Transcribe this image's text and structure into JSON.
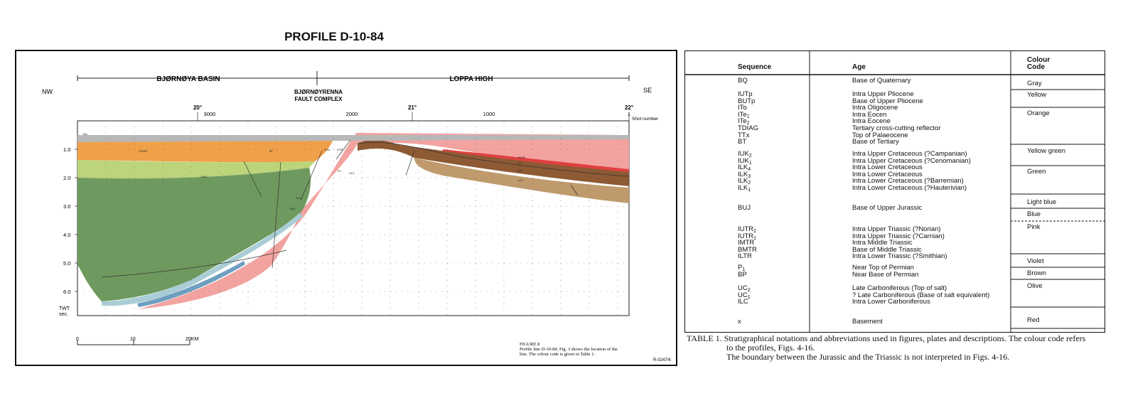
{
  "profile": {
    "title": "PROFILE D-10-84",
    "basin_left": "BJØRNØYA BASIN",
    "basin_right": "LOPPA HIGH",
    "fault_complex_line1": "BJØRNØYRENNA",
    "fault_complex_line2": "FAULT COMPLEX",
    "dir_left": "NW",
    "dir_right": "SE",
    "longitudes": [
      "20°",
      "21°",
      "22°"
    ],
    "shot_numbers": [
      "3000",
      "2000",
      "1000",
      "1"
    ],
    "shot_label": "Shot number",
    "depth_ticks": [
      "1.0",
      "2.0",
      "3.0",
      "4.0",
      "5.0",
      "6.0"
    ],
    "twt_label_1": "TWT",
    "twt_label_2": "sec.",
    "scale_labels": [
      "0",
      "10",
      "20KM"
    ],
    "figure_caption": {
      "line1": "FIGURE 8",
      "line2": "Profile line D-10-84. Fig. 3 shows the location of the",
      "line3": "line. The colour code is given in Table 1."
    },
    "ref_code": "R-0247/6",
    "horizon_labels": [
      "BQ",
      "TDIAG",
      "BT",
      "IUK1",
      "ILK1",
      "BUJ",
      "ILK4",
      "ILTR",
      "P1",
      "UC1",
      "IMTR",
      "P1",
      "BP",
      "UC1"
    ],
    "colors": {
      "orange": "#f0a048",
      "yellow_green": "#bcd47a",
      "green": "#6f9a5f",
      "light_blue": "#a9cdd6",
      "blue": "#6d9ec0",
      "pink": "#f2a3a0",
      "brown": "#8d5a34",
      "olive": "#bf9a6c",
      "violet": "#c07ab8",
      "gray": "#b8b8b8",
      "red": "#e04040"
    }
  },
  "table": {
    "headers": {
      "sequence": "Sequence",
      "age": "Age",
      "colour_line1": "Colour",
      "colour_line2": "Code"
    },
    "groups": [
      {
        "seq": [
          "BQ"
        ],
        "age": [
          "Base of Quaternary"
        ],
        "colours": [
          "Gray"
        ]
      },
      {
        "seq": [
          "IUTp",
          "BUTp",
          "ITo",
          "ITe1",
          "ITe2",
          "TDIAG",
          "TTx",
          "BT"
        ],
        "age": [
          "Intra Upper Pliocene",
          "Base of Upper Pliocene",
          "Intra Oligocene",
          "Intra Eocen",
          "Intra Eocene",
          "Tertiary cross-cutting reflector",
          "Top of Palaeocene",
          "Base of Tertiary"
        ],
        "colours": [
          "Yellow",
          "Orange"
        ]
      },
      {
        "seq": [
          "IUK2",
          "IUK1",
          "ILK4",
          "ILK3",
          "ILK2",
          "ILK1"
        ],
        "age": [
          "Intra Upper Cretaceous (?Campanian)",
          "Intra Upper Cretaceous (?Cenomanian)",
          "Intra Lower Cretaceous",
          "Intra Lower Cretaceous",
          "Intra Lower Cretaceous (?Barremian)",
          "Intra Lower Cretaceous (?Hauterivian)"
        ],
        "colours": [
          "Yellow green",
          "Green"
        ]
      },
      {
        "seq": [
          "BUJ"
        ],
        "age": [
          "Base of Upper Jurassic"
        ],
        "colours": [
          "Light blue",
          "Blue"
        ]
      },
      {
        "seq": [
          "IUTR2",
          "IUTR1",
          "IMTR",
          "BMTR",
          "ILTR"
        ],
        "age": [
          "Intra Upper Triassic (?Norian)",
          "Intra Upper Triassic (?Carnian)",
          "Intra Middle Triassic",
          "Base of Middle Triassic",
          "Intra Lower Triassic (?Smithian)"
        ],
        "colours": [
          "Pink"
        ]
      },
      {
        "seq": [
          "P1",
          "BP"
        ],
        "age": [
          "Near Top of Permian",
          "Near Base of Permian"
        ],
        "colours": [
          "Violet",
          "Brown"
        ]
      },
      {
        "seq": [
          "UC2",
          "UC1",
          "ILC"
        ],
        "age": [
          "Late Carboniferous (Top of salt)",
          "? Late Carboniferous (Base of salt equivalent)",
          "Intra Lower Carboniferous"
        ],
        "colours": [
          "Olive"
        ]
      },
      {
        "seq": [
          "x"
        ],
        "age": [
          "Basement"
        ],
        "colours": [
          "Red"
        ]
      }
    ],
    "caption": {
      "line1": "TABLE 1. Stratigraphical notations and abbreviations used in figures, plates and descriptions. The colour code refers",
      "line2": "to the profiles, Figs. 4-16.",
      "line3": "The boundary between the Jurassic and the Triassic is not interpreted in Figs. 4-16."
    }
  }
}
